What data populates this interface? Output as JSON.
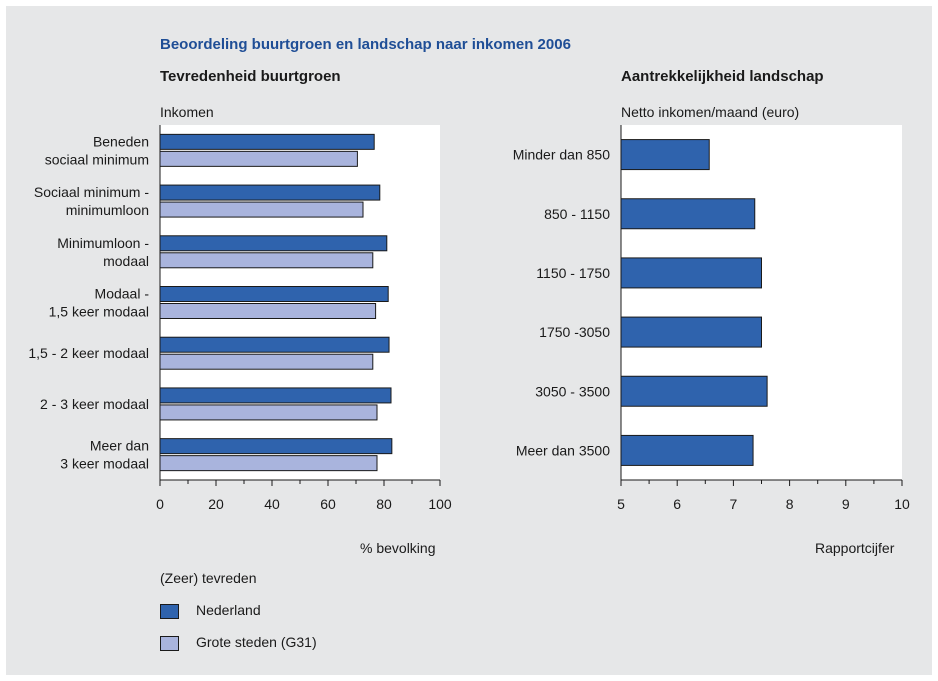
{
  "title": "Beoordeling buurtgroen en landschap naar inkomen 2006",
  "colors": {
    "nederland": "#2f63ad",
    "g31": "#a9b4dd",
    "background": "#e6e7e8",
    "title": "#1f4e96"
  },
  "chart_data": [
    {
      "type": "bar",
      "orientation": "horizontal",
      "title": "Tevredenheid buurtgroen",
      "category_axis_label": "Inkomen",
      "xlabel": "% bevolking",
      "xlim": [
        0,
        100
      ],
      "xticks": [
        "0",
        "20",
        "40",
        "60",
        "80",
        "100"
      ],
      "categories": [
        [
          "Beneden",
          "sociaal minimum"
        ],
        [
          "Sociaal minimum -",
          "minimumloon"
        ],
        [
          "Minimumloon -",
          "modaal"
        ],
        [
          "Modaal -",
          "1,5 keer modaal"
        ],
        [
          "1,5 - 2 keer modaal"
        ],
        [
          "2 - 3 keer modaal"
        ],
        [
          "Meer dan",
          "3 keer modaal"
        ]
      ],
      "series": [
        {
          "name": "Nederland",
          "values": [
            76.5,
            78.5,
            81,
            81.5,
            81.8,
            82.5,
            82.8
          ]
        },
        {
          "name": "Grote steden (G31)",
          "values": [
            70.5,
            72.5,
            76,
            77,
            76,
            77.5,
            77.5
          ]
        }
      ],
      "legend": {
        "title": "(Zeer) tevreden",
        "items": [
          "Nederland",
          "Grote steden (G31)"
        ],
        "placement": "bottom-left"
      },
      "grid": false
    },
    {
      "type": "bar",
      "orientation": "horizontal",
      "title": "Aantrekkelijkheid landschap",
      "category_axis_label": "Netto inkomen/maand (euro)",
      "xlabel": "Rapportcijfer",
      "xlim": [
        5,
        10
      ],
      "xticks": [
        "5",
        "6",
        "7",
        "8",
        "9",
        "10"
      ],
      "categories": [
        "Minder dan 850",
        "850 - 1150",
        "1150 - 1750",
        "1750 -3050",
        "3050 - 3500",
        "Meer dan 3500"
      ],
      "series": [
        {
          "values": [
            6.57,
            7.38,
            7.5,
            7.5,
            7.6,
            7.35
          ]
        }
      ],
      "grid": false
    }
  ]
}
